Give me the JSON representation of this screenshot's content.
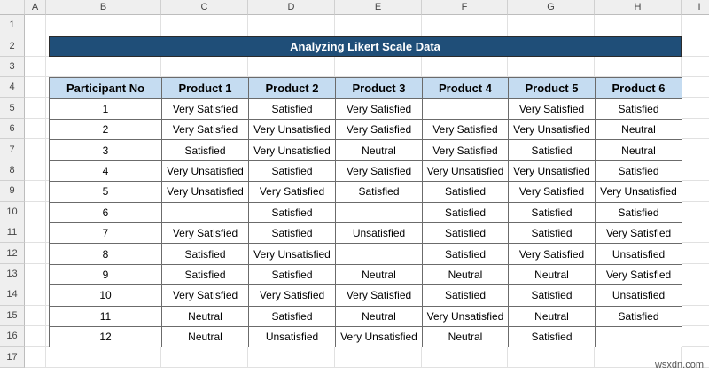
{
  "spreadsheet": {
    "columns": [
      "A",
      "B",
      "C",
      "D",
      "E",
      "F",
      "G",
      "H",
      "I"
    ],
    "row_numbers": [
      1,
      2,
      3,
      4,
      5,
      6,
      7,
      8,
      9,
      10,
      11,
      12,
      13,
      14,
      15,
      16,
      17
    ]
  },
  "title": "Analyzing Likert Scale Data",
  "table": {
    "headers": [
      "Participant No",
      "Product 1",
      "Product 2",
      "Product 3",
      "Product 4",
      "Product 5",
      "Product 6"
    ],
    "rows": [
      [
        1,
        "Very Satisfied",
        "Satisfied",
        "Very Satisfied",
        null,
        "Very Satisfied",
        "Satisfied"
      ],
      [
        2,
        "Very Satisfied",
        "Very Unsatisfied",
        "Very Satisfied",
        "Very Satisfied",
        "Very Unsatisfied",
        "Neutral"
      ],
      [
        3,
        "Satisfied",
        "Very Unsatisfied",
        "Neutral",
        "Very Satisfied",
        "Satisfied",
        "Neutral"
      ],
      [
        4,
        "Very Unsatisfied",
        "Satisfied",
        "Very Satisfied",
        "Very Unsatisfied",
        "Very Unsatisfied",
        "Satisfied"
      ],
      [
        5,
        "Very Unsatisfied",
        "Very Satisfied",
        "Satisfied",
        "Satisfied",
        "Very Satisfied",
        "Very Unsatisfied"
      ],
      [
        6,
        null,
        "Satisfied",
        null,
        "Satisfied",
        "Satisfied",
        "Satisfied"
      ],
      [
        7,
        "Very Satisfied",
        "Satisfied",
        "Unsatisfied",
        "Satisfied",
        "Satisfied",
        "Very Satisfied"
      ],
      [
        8,
        "Satisfied",
        "Very Unsatisfied",
        null,
        "Satisfied",
        "Very Satisfied",
        "Unsatisfied"
      ],
      [
        9,
        "Satisfied",
        "Satisfied",
        "Neutral",
        "Neutral",
        "Neutral",
        "Very Satisfied"
      ],
      [
        10,
        "Very Satisfied",
        "Very Satisfied",
        "Very Satisfied",
        "Satisfied",
        "Satisfied",
        "Unsatisfied"
      ],
      [
        11,
        "Neutral",
        "Satisfied",
        "Neutral",
        "Very Unsatisfied",
        "Neutral",
        "Satisfied"
      ],
      [
        12,
        "Neutral",
        "Unsatisfied",
        "Very Unsatisfied",
        "Neutral",
        "Satisfied",
        null
      ]
    ]
  },
  "watermark": "wsxdn.com"
}
